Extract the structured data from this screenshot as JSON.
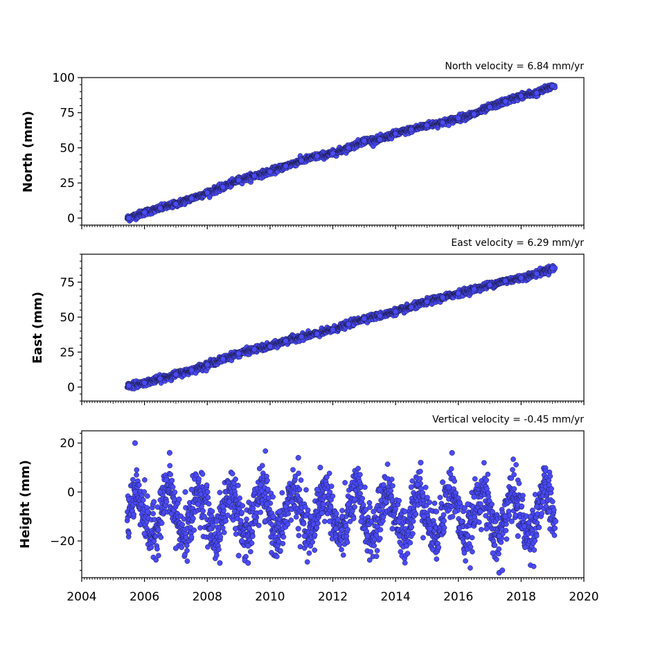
{
  "chart_data": [
    {
      "type": "scatter",
      "title": "North velocity = 6.84 mm/yr",
      "xlabel": "",
      "ylabel": "North (mm)",
      "xlim": [
        2004,
        2020
      ],
      "ylim": [
        -5,
        100
      ],
      "yticks": [
        0,
        25,
        50,
        75,
        100
      ],
      "marker_color": "#4a4aff",
      "edge_color": "#1a1a40",
      "series": [
        {
          "x": [
            2005.5,
            2006.0,
            2006.5,
            2007.0,
            2007.5,
            2008.0,
            2008.5,
            2009.0,
            2009.5,
            2010.0,
            2010.5,
            2011.0,
            2011.5,
            2012.0,
            2012.5,
            2013.0,
            2013.5,
            2014.0,
            2014.5,
            2015.0,
            2015.5,
            2016.0,
            2016.5,
            2017.0,
            2017.5,
            2018.0,
            2018.5,
            2019.0
          ],
          "y": [
            0,
            4,
            7,
            10,
            14,
            18,
            22,
            27,
            30,
            33,
            37,
            41,
            44,
            46,
            50,
            55,
            56,
            60,
            63,
            66,
            68,
            71,
            74,
            79,
            83,
            87,
            89,
            94
          ]
        }
      ]
    },
    {
      "type": "scatter",
      "title": "East velocity = 6.29 mm/yr",
      "xlabel": "",
      "ylabel": "East (mm)",
      "xlim": [
        2004,
        2020
      ],
      "ylim": [
        -10,
        95
      ],
      "yticks": [
        0,
        25,
        50,
        75
      ],
      "marker_color": "#4a4aff",
      "edge_color": "#1a1a40",
      "series": [
        {
          "x": [
            2005.5,
            2006.0,
            2006.5,
            2007.0,
            2007.5,
            2008.0,
            2008.5,
            2009.0,
            2009.5,
            2010.0,
            2010.5,
            2011.0,
            2011.5,
            2012.0,
            2012.5,
            2013.0,
            2013.5,
            2014.0,
            2014.5,
            2015.0,
            2015.5,
            2016.0,
            2016.5,
            2017.0,
            2017.5,
            2018.0,
            2018.5,
            2019.0
          ],
          "y": [
            1,
            3,
            6,
            9,
            12,
            16,
            20,
            24,
            27,
            29,
            33,
            36,
            38,
            41,
            45,
            49,
            51,
            54,
            57,
            61,
            64,
            67,
            70,
            73,
            76,
            78,
            81,
            85
          ]
        }
      ]
    },
    {
      "type": "scatter",
      "title": "Vertical velocity = -0.45 mm/yr",
      "xlabel": "",
      "ylabel": "Height (mm)",
      "xlim": [
        2004,
        2020
      ],
      "ylim": [
        -35,
        25
      ],
      "yticks": [
        -20,
        0,
        20
      ],
      "xticks": [
        2004,
        2006,
        2008,
        2010,
        2012,
        2014,
        2016,
        2018,
        2020
      ],
      "marker_color": "#4a4aff",
      "edge_color": "#1a1a40",
      "series": [
        {
          "x": [
            2005.5,
            2005.7,
            2005.9,
            2006.1,
            2006.3,
            2006.5,
            2006.7,
            2006.9,
            2007.1,
            2007.3,
            2007.5,
            2007.7,
            2007.9,
            2008.1,
            2008.3,
            2008.5,
            2008.7,
            2008.9,
            2009.1,
            2009.3,
            2009.5,
            2009.7,
            2009.9,
            2010.1,
            2010.3,
            2010.5,
            2010.7,
            2010.9,
            2011.1,
            2011.3,
            2011.5,
            2011.7,
            2011.9,
            2012.1,
            2012.3,
            2012.5,
            2012.7,
            2012.9,
            2013.1,
            2013.3,
            2013.5,
            2013.7,
            2013.9,
            2014.1,
            2014.3,
            2014.5,
            2014.7,
            2014.9,
            2015.1,
            2015.3,
            2015.5,
            2015.7,
            2015.9,
            2016.1,
            2016.3,
            2016.5,
            2016.7,
            2016.9,
            2017.1,
            2017.3,
            2017.5,
            2017.7,
            2017.9,
            2018.1,
            2018.3,
            2018.5,
            2018.7,
            2018.9,
            2019.1,
            2005.7,
            2006.8,
            2008.4,
            2009.2,
            2009.3,
            2015.8,
            2017.3,
            2006.0,
            2007.0,
            2010.9,
            2011.6,
            2014.8,
            2016.6,
            2009.0,
            2017.4
          ],
          "y": [
            -3,
            0,
            -5,
            -8,
            -4,
            0,
            5,
            2,
            -3,
            0,
            1,
            -5,
            -10,
            -15,
            -12,
            -6,
            -4,
            -15,
            -20,
            -22,
            -10,
            3,
            -5,
            -10,
            -8,
            -6,
            -4,
            -15,
            -18,
            -10,
            1,
            -5,
            -12,
            -15,
            -10,
            -5,
            -3,
            -12,
            -18,
            -8,
            1,
            -4,
            -15,
            -12,
            -8,
            2,
            3,
            -10,
            -15,
            -8,
            4,
            2,
            -8,
            -12,
            -5,
            -2,
            -8,
            -15,
            -25,
            -18,
            -10,
            -12,
            -18,
            -14,
            -10,
            -6,
            -4,
            -8,
            -12,
            20,
            16,
            -29,
            -28,
            -29,
            16,
            -33,
            -17,
            -23,
            14,
            10,
            12,
            3,
            -26,
            -32
          ]
        }
      ]
    }
  ]
}
